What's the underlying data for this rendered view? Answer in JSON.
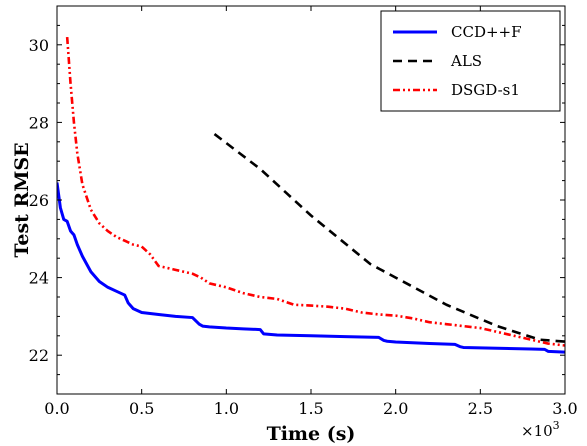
{
  "chart_data": {
    "type": "line",
    "xlabel": "Time (s)",
    "ylabel": "Test RMSE",
    "x_multiplier_label": "×10",
    "x_multiplier_exponent": "3",
    "xlim": [
      0.0,
      3.0
    ],
    "ylim": [
      21.0,
      31.0
    ],
    "x_ticks": [
      0.0,
      0.5,
      1.0,
      1.5,
      2.0,
      2.5,
      3.0
    ],
    "x_tick_labels": [
      "0.0",
      "0.5",
      "1.0",
      "1.5",
      "2.0",
      "2.5",
      "3.0"
    ],
    "y_ticks": [
      22,
      24,
      26,
      28,
      30
    ],
    "y_tick_labels": [
      "22",
      "24",
      "26",
      "28",
      "30"
    ],
    "grid": false,
    "legend_position": "top-right",
    "series": [
      {
        "name": "CCD++F",
        "color": "#0000ff",
        "style": "solid",
        "x": [
          0.0,
          0.02,
          0.04,
          0.06,
          0.08,
          0.09,
          0.1,
          0.12,
          0.15,
          0.2,
          0.25,
          0.3,
          0.35,
          0.4,
          0.42,
          0.45,
          0.5,
          0.6,
          0.7,
          0.8,
          0.84,
          0.86,
          0.9,
          1.0,
          1.1,
          1.2,
          1.22,
          1.3,
          1.5,
          1.7,
          1.9,
          1.93,
          1.95,
          2.0,
          2.2,
          2.35,
          2.38,
          2.4,
          2.6,
          2.8,
          2.88,
          2.9,
          3.0
        ],
        "y": [
          26.45,
          25.8,
          25.5,
          25.45,
          25.2,
          25.15,
          25.1,
          24.85,
          24.55,
          24.15,
          23.9,
          23.75,
          23.65,
          23.55,
          23.35,
          23.2,
          23.1,
          23.05,
          23.0,
          22.97,
          22.8,
          22.75,
          22.73,
          22.7,
          22.68,
          22.66,
          22.55,
          22.52,
          22.5,
          22.48,
          22.46,
          22.38,
          22.36,
          22.34,
          22.3,
          22.28,
          22.22,
          22.2,
          22.18,
          22.16,
          22.15,
          22.1,
          22.08
        ]
      },
      {
        "name": "ALS",
        "color": "#000000",
        "style": "dashed",
        "x": [
          0.93,
          1.2,
          1.5,
          1.85,
          2.0,
          2.3,
          2.6,
          2.85,
          3.0
        ],
        "y": [
          27.7,
          26.8,
          25.6,
          24.35,
          24.0,
          23.3,
          22.75,
          22.4,
          22.35
        ]
      },
      {
        "name": "DSGD-s1",
        "color": "#ff0000",
        "style": "dashdotdot",
        "x": [
          0.06,
          0.08,
          0.1,
          0.12,
          0.15,
          0.2,
          0.25,
          0.3,
          0.35,
          0.4,
          0.45,
          0.5,
          0.55,
          0.6,
          0.7,
          0.8,
          0.85,
          0.9,
          1.0,
          1.1,
          1.2,
          1.3,
          1.4,
          1.5,
          1.6,
          1.7,
          1.8,
          1.9,
          2.0,
          2.1,
          2.2,
          2.3,
          2.4,
          2.5,
          2.6,
          2.7,
          2.8,
          2.9,
          3.0
        ],
        "y": [
          30.2,
          29.0,
          28.0,
          27.2,
          26.4,
          25.75,
          25.4,
          25.2,
          25.05,
          24.95,
          24.85,
          24.8,
          24.6,
          24.3,
          24.2,
          24.1,
          24.0,
          23.85,
          23.75,
          23.6,
          23.5,
          23.45,
          23.3,
          23.28,
          23.25,
          23.2,
          23.1,
          23.05,
          23.02,
          22.95,
          22.85,
          22.8,
          22.75,
          22.7,
          22.6,
          22.5,
          22.4,
          22.3,
          22.25
        ]
      }
    ]
  }
}
